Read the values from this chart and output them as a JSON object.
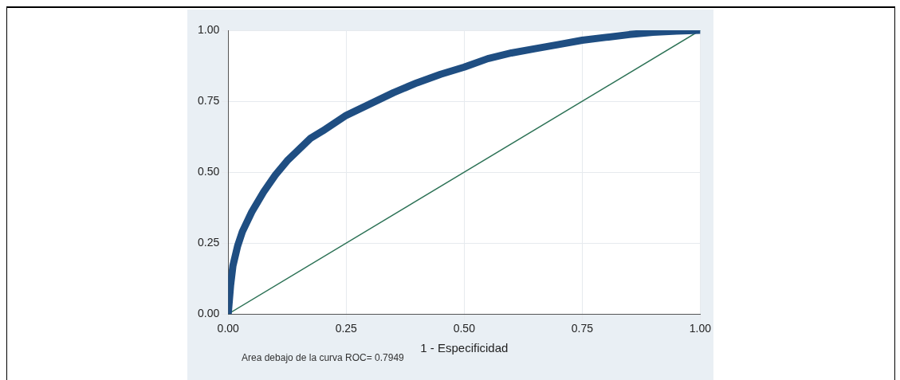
{
  "chart_data": {
    "type": "line",
    "xlabel": "1 - Especificidad",
    "annotations": [
      "Area debajo de la curva ROC= 0.7949"
    ],
    "xlim": [
      0,
      1
    ],
    "ylim": [
      0,
      1
    ],
    "xticks": [
      {
        "value": 0,
        "label": "0.00"
      },
      {
        "value": 0.25,
        "label": "0.25"
      },
      {
        "value": 0.5,
        "label": "0.50"
      },
      {
        "value": 0.75,
        "label": "0.75"
      },
      {
        "value": 1,
        "label": "1.00"
      }
    ],
    "yticks": [
      {
        "value": 0,
        "label": "0.00"
      },
      {
        "value": 0.25,
        "label": "0.25"
      },
      {
        "value": 0.5,
        "label": "0.50"
      },
      {
        "value": 0.75,
        "label": "0.75"
      },
      {
        "value": 1,
        "label": "1.00"
      }
    ],
    "grid": true,
    "legend": false,
    "series": [
      {
        "color": "#1f4e82",
        "x": [
          0,
          0.005,
          0.01,
          0.02,
          0.03,
          0.05,
          0.075,
          0.1,
          0.125,
          0.15,
          0.175,
          0.2,
          0.25,
          0.3,
          0.35,
          0.4,
          0.45,
          0.5,
          0.55,
          0.6,
          0.65,
          0.7,
          0.75,
          0.8,
          0.85,
          0.9,
          0.95,
          1
        ],
        "values": [
          0,
          0.1,
          0.17,
          0.24,
          0.29,
          0.36,
          0.43,
          0.49,
          0.54,
          0.58,
          0.62,
          0.645,
          0.7,
          0.74,
          0.78,
          0.815,
          0.845,
          0.87,
          0.9,
          0.92,
          0.935,
          0.95,
          0.965,
          0.975,
          0.985,
          0.993,
          0.997,
          1
        ]
      },
      {
        "color": "#2e7357",
        "x": [
          0,
          1
        ],
        "values": [
          0,
          1
        ]
      }
    ]
  }
}
